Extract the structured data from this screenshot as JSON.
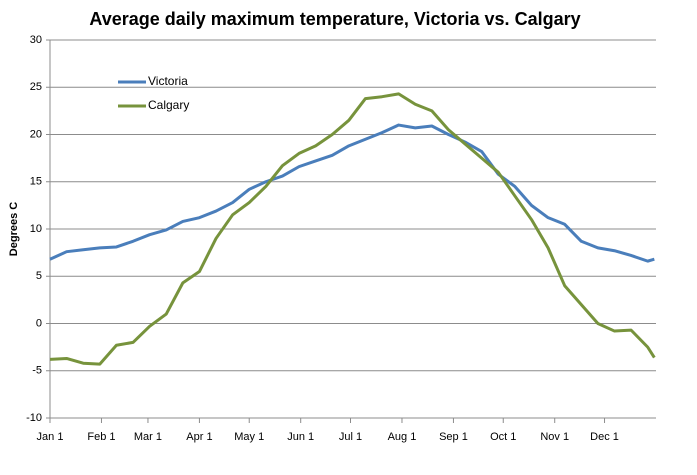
{
  "chart_data": {
    "type": "line",
    "title": "Average daily maximum temperature, Victoria vs. Calgary",
    "y_label": "Degrees C",
    "x": [
      0,
      10,
      20,
      30,
      40,
      50,
      60,
      70,
      80,
      90,
      100,
      110,
      120,
      130,
      140,
      150,
      160,
      170,
      180,
      190,
      200,
      210,
      220,
      230,
      240,
      250,
      260,
      270,
      280,
      290,
      300,
      310,
      320,
      330,
      340,
      350,
      360,
      364
    ],
    "series": [
      {
        "name": "Victoria",
        "color": "#4a7ebb",
        "values": [
          6.8,
          7.6,
          7.8,
          8.0,
          8.1,
          8.7,
          9.4,
          9.9,
          10.8,
          11.2,
          11.9,
          12.8,
          14.2,
          15.0,
          15.6,
          16.6,
          17.2,
          17.8,
          18.8,
          19.5,
          20.2,
          21.0,
          20.7,
          20.9,
          20.0,
          19.2,
          18.2,
          15.8,
          14.5,
          12.5,
          11.2,
          10.5,
          8.7,
          8.0,
          7.7,
          7.2,
          6.6,
          6.8
        ]
      },
      {
        "name": "Calgary",
        "color": "#77933c",
        "values": [
          -3.8,
          -3.7,
          -4.2,
          -4.3,
          -2.3,
          -2.0,
          -0.3,
          1.0,
          4.3,
          5.5,
          9.0,
          11.5,
          12.8,
          14.5,
          16.7,
          18.0,
          18.8,
          20.0,
          21.5,
          23.8,
          24.0,
          24.3,
          23.2,
          22.5,
          20.5,
          19.0,
          17.5,
          16.0,
          13.5,
          11.0,
          8.0,
          4.0,
          2.0,
          0.0,
          -0.8,
          -0.7,
          -2.5,
          -3.6
        ]
      }
    ],
    "xlim": [
      0,
      365
    ],
    "xticks": [
      {
        "value": 0,
        "label": "Jan 1"
      },
      {
        "value": 31,
        "label": "Feb 1"
      },
      {
        "value": 59,
        "label": "Mar 1"
      },
      {
        "value": 90,
        "label": "Apr 1"
      },
      {
        "value": 120,
        "label": "May 1"
      },
      {
        "value": 151,
        "label": "Jun 1"
      },
      {
        "value": 181,
        "label": "Jul 1"
      },
      {
        "value": 212,
        "label": "Aug 1"
      },
      {
        "value": 243,
        "label": "Sep 1"
      },
      {
        "value": 273,
        "label": "Oct 1"
      },
      {
        "value": 304,
        "label": "Nov 1"
      },
      {
        "value": 334,
        "label": "Dec 1"
      }
    ],
    "ylim": [
      -10,
      30
    ],
    "yticks": [
      -10,
      -5,
      0,
      5,
      10,
      15,
      20,
      25,
      30
    ],
    "grid": true
  }
}
